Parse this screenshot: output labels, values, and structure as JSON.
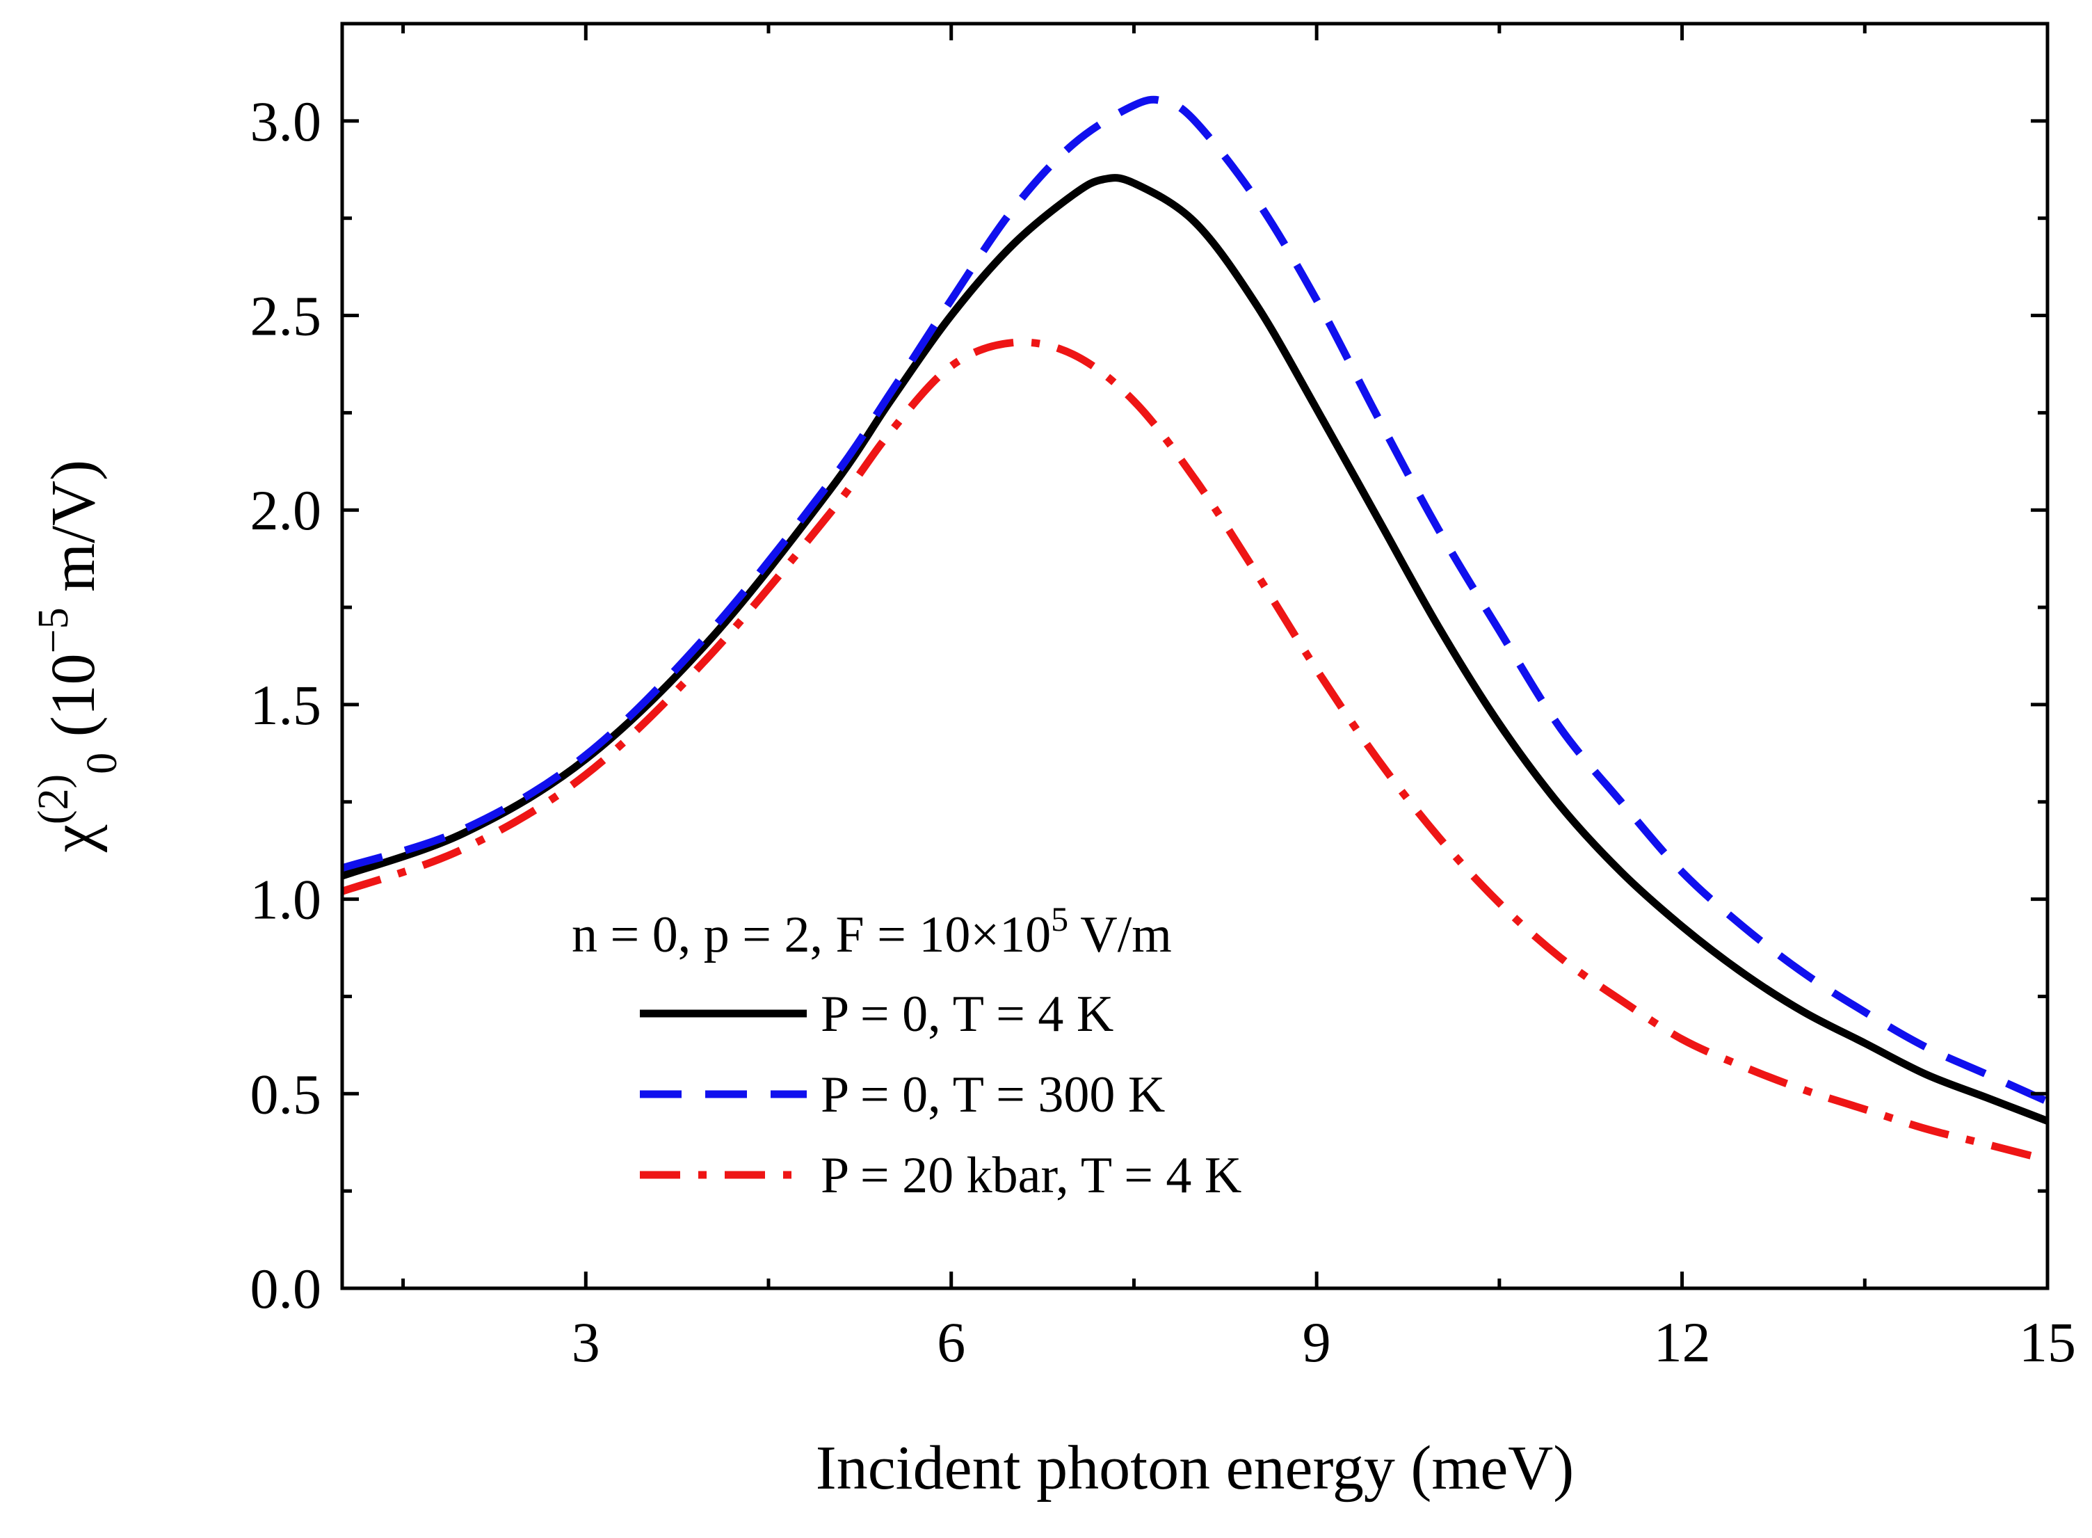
{
  "chart_data": {
    "type": "line",
    "xlabel": "Incident photon energy (meV)",
    "ylabel": {
      "base": "χ",
      "sup": "(2)",
      "sub": "0",
      "unit_open": " (10",
      "unit_exp": "−5",
      "unit_close": " m/V)"
    },
    "xlim": [
      1,
      15
    ],
    "ylim": [
      0,
      3.25
    ],
    "x_ticks": [
      3,
      6,
      9,
      12,
      15
    ],
    "x_tick_labels": [
      "3",
      "6",
      "9",
      "12",
      "15"
    ],
    "x_minor_ticks": [
      1.5,
      4.5,
      7.5,
      10.5,
      13.5
    ],
    "y_ticks": [
      0,
      0.5,
      1.0,
      1.5,
      2.0,
      2.5,
      3.0
    ],
    "y_tick_labels": [
      "0.0",
      "0.5",
      "1.0",
      "1.5",
      "2.0",
      "2.5",
      "3.0"
    ],
    "y_minor_ticks": [
      0.25,
      0.75,
      1.25,
      1.75,
      2.25,
      2.75
    ],
    "legend": {
      "title": {
        "text": "n = 0, p = 2, F = 10×10",
        "sup": "5",
        "tail": " V/m"
      },
      "position": "center-bottom"
    },
    "series": [
      {
        "name": "P = 0, T = 4 K",
        "color": "#000000",
        "style": "solid",
        "x": [
          1,
          2,
          3,
          4,
          5,
          5.5,
          6,
          6.5,
          7,
          7.25,
          7.5,
          8,
          8.5,
          9,
          9.5,
          10,
          10.5,
          11,
          11.5,
          12,
          12.5,
          13,
          13.5,
          14,
          14.5,
          15
        ],
        "y": [
          1.06,
          1.17,
          1.36,
          1.66,
          2.05,
          2.28,
          2.5,
          2.68,
          2.81,
          2.85,
          2.84,
          2.74,
          2.53,
          2.26,
          1.98,
          1.7,
          1.45,
          1.24,
          1.07,
          0.93,
          0.81,
          0.71,
          0.63,
          0.55,
          0.49,
          0.43
        ]
      },
      {
        "name": "P = 0, T = 300 K",
        "color": "#1010ee",
        "style": "dashed",
        "x": [
          1,
          2,
          3,
          4,
          5,
          5.5,
          6,
          6.5,
          7,
          7.5,
          7.75,
          8,
          8.5,
          9,
          9.5,
          10,
          10.5,
          11,
          11.5,
          12,
          12.5,
          13,
          13.5,
          14,
          14.5,
          15
        ],
        "y": [
          1.08,
          1.18,
          1.37,
          1.68,
          2.07,
          2.3,
          2.54,
          2.77,
          2.94,
          3.04,
          3.05,
          3.0,
          2.8,
          2.54,
          2.24,
          1.95,
          1.69,
          1.44,
          1.25,
          1.07,
          0.93,
          0.81,
          0.71,
          0.62,
          0.55,
          0.48
        ]
      },
      {
        "name": "P = 20 kbar, T = 4 K",
        "color": "#ee1515",
        "style": "dashdot",
        "x": [
          1,
          2,
          3,
          4,
          5,
          5.5,
          6,
          6.5,
          7,
          7.5,
          8,
          8.5,
          9,
          9.5,
          10,
          10.5,
          11,
          11.5,
          12,
          12.5,
          13,
          13.5,
          14,
          14.5,
          15
        ],
        "y": [
          1.02,
          1.13,
          1.32,
          1.62,
          1.99,
          2.2,
          2.37,
          2.43,
          2.4,
          2.28,
          2.08,
          1.84,
          1.59,
          1.36,
          1.16,
          0.99,
          0.85,
          0.74,
          0.64,
          0.57,
          0.51,
          0.46,
          0.41,
          0.37,
          0.33
        ]
      }
    ]
  }
}
